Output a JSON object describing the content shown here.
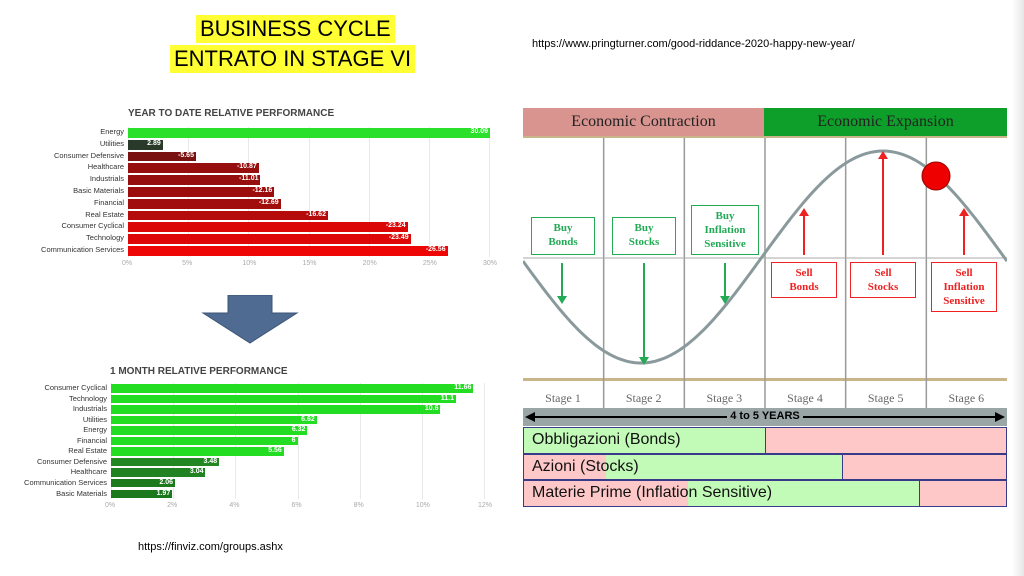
{
  "title": {
    "line1": "BUSINESS CYCLE",
    "line2": "ENTRATO IN STAGE VI"
  },
  "url_top": "https://www.pringturner.com/good-riddance-2020-happy-new-year/",
  "url_bottom": "https://finviz.com/groups.ashx",
  "colors": {
    "highlight": "#ffff33",
    "green": "#22dd22",
    "dark_green": "#1a7a1a",
    "red": "#dd0000",
    "dark_red": "#5a1010",
    "contraction": "#d9948f",
    "expansion": "#0e9f2a",
    "asset_green": "#c2fbb8",
    "asset_pink": "#ffc8c8",
    "asset_border": "#3a3a8a"
  },
  "chart_data": [
    {
      "type": "bar",
      "title": "YEAR TO DATE RELATIVE PERFORMANCE",
      "categories": [
        "Energy",
        "Utilities",
        "Consumer Defensive",
        "Healthcare",
        "Industrials",
        "Basic Materials",
        "Financial",
        "Real Estate",
        "Consumer Cyclical",
        "Technology",
        "Communication Services"
      ],
      "values": [
        30.09,
        2.89,
        -5.65,
        -10.87,
        -11.01,
        -12.16,
        -12.69,
        -16.62,
        -23.24,
        -23.49,
        -26.56
      ],
      "value_labels": [
        "30.09",
        "2.89",
        "-5.65",
        "-10.87",
        "-11.01",
        "-12.16",
        "-12.69",
        "-16.62",
        "-23.24",
        "-23.49",
        "-26.56"
      ],
      "xticks": [
        "0%",
        "5%",
        "10%",
        "15%",
        "20%",
        "25%",
        "30%"
      ],
      "xlim": [
        0,
        30
      ],
      "grid": true
    },
    {
      "type": "bar",
      "title": "1 MONTH RELATIVE PERFORMANCE",
      "categories": [
        "Consumer Cyclical",
        "Technology",
        "Industrials",
        "Utilities",
        "Energy",
        "Financial",
        "Real Estate",
        "Consumer Defensive",
        "Healthcare",
        "Communication Services",
        "Basic Materials"
      ],
      "values": [
        11.66,
        11.1,
        10.6,
        6.62,
        6.32,
        6,
        5.56,
        3.48,
        3.04,
        2.06,
        1.97
      ],
      "value_labels": [
        "11.66",
        "11.1",
        "10.6",
        "6.62",
        "6.32",
        "6",
        "5.56",
        "3.48",
        "3.04",
        "2.06",
        "1.97"
      ],
      "xticks": [
        "0%",
        "2%",
        "4%",
        "6%",
        "8%",
        "10%",
        "12%"
      ],
      "xlim": [
        0,
        12
      ],
      "grid": true
    }
  ],
  "cycle": {
    "contraction_label": "Economic Contraction",
    "expansion_label": "Economic Expansion",
    "buy_boxes": [
      {
        "lines": [
          "Buy",
          "Bonds"
        ]
      },
      {
        "lines": [
          "Buy",
          "Stocks"
        ]
      },
      {
        "lines": [
          "Buy",
          "Inflation",
          "Sensitive"
        ]
      }
    ],
    "sell_boxes": [
      {
        "lines": [
          "Sell",
          "Bonds"
        ]
      },
      {
        "lines": [
          "Sell",
          "Stocks"
        ]
      },
      {
        "lines": [
          "Sell",
          "Inflation",
          "Sensitive"
        ]
      }
    ],
    "stages": [
      "Stage 1",
      "Stage 2",
      "Stage 3",
      "Stage 4",
      "Stage 5",
      "Stage 6"
    ],
    "duration_label": "4 to 5 YEARS",
    "assets": [
      {
        "label": "Obbligazioni (Bonds)",
        "green_from": 0.0,
        "green_to": 0.5
      },
      {
        "label": "Azioni (Stocks)",
        "green_from": 0.17,
        "green_to": 0.66
      },
      {
        "label": "Materie Prime (Inflation Sensitive)",
        "green_from": 0.34,
        "green_to": 0.82
      }
    ]
  }
}
